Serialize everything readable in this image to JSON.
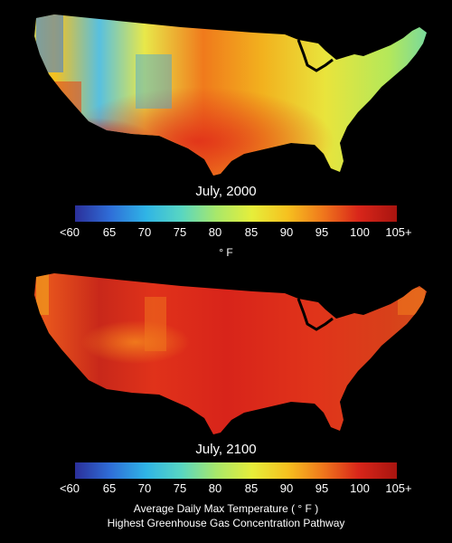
{
  "maps": [
    {
      "title": "July, 2000"
    },
    {
      "title": "July, 2100"
    }
  ],
  "colorbar": {
    "ticks": [
      "<60",
      "65",
      "70",
      "75",
      "80",
      "85",
      "90",
      "95",
      "100",
      "105+"
    ],
    "colors": [
      "#2b2f9a",
      "#2f6ed8",
      "#2fb4e6",
      "#58d6c2",
      "#a9e86a",
      "#e6ee3a",
      "#f6c11f",
      "#f0781c",
      "#d9261a",
      "#a8140f"
    ]
  },
  "unit_label": "° F",
  "caption": {
    "line1": "Average Daily Max Temperature ( ° F )",
    "line2": "Highest Greenhouse Gas Concentration Pathway"
  }
}
